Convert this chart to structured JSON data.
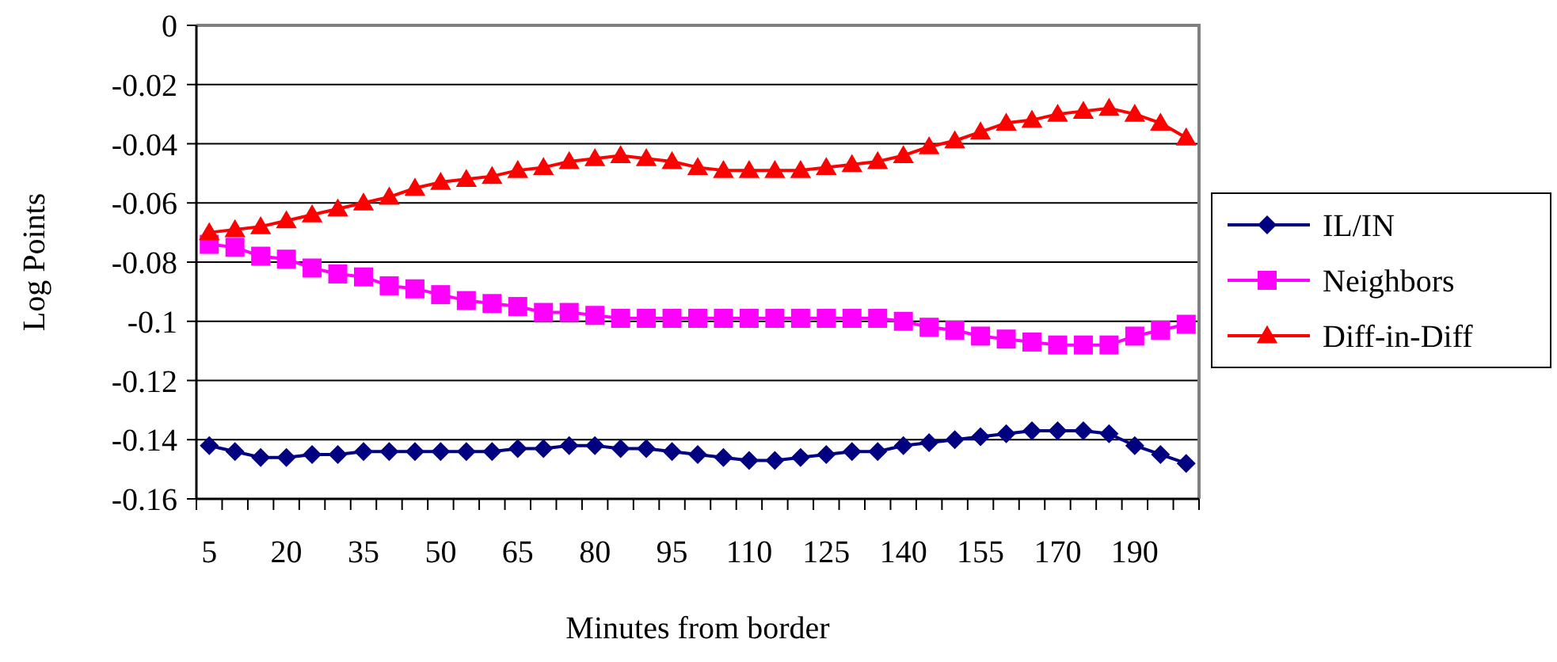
{
  "chart_data": {
    "type": "line",
    "xlabel": "Minutes from border",
    "ylabel": "Log Points",
    "categories": [
      "5",
      null,
      null,
      "20",
      null,
      null,
      "35",
      null,
      null,
      "50",
      null,
      null,
      "65",
      null,
      null,
      "80",
      null,
      null,
      "95",
      null,
      null,
      "110",
      null,
      null,
      "125",
      null,
      null,
      "140",
      null,
      null,
      "155",
      null,
      null,
      "170",
      null,
      null,
      "190",
      null,
      null
    ],
    "ylim": [
      -0.16,
      0
    ],
    "yticks": [
      -0.16,
      -0.14,
      -0.12,
      -0.1,
      -0.08,
      -0.06,
      -0.04,
      -0.02,
      0
    ],
    "grid": "y",
    "legend": "right",
    "series": [
      {
        "name": "IL/IN",
        "color": "#000080",
        "marker": "diamond",
        "values": [
          -0.142,
          -0.144,
          -0.146,
          -0.146,
          -0.145,
          -0.145,
          -0.144,
          -0.144,
          -0.144,
          -0.144,
          -0.144,
          -0.144,
          -0.143,
          -0.143,
          -0.142,
          -0.142,
          -0.143,
          -0.143,
          -0.144,
          -0.145,
          -0.146,
          -0.147,
          -0.147,
          -0.146,
          -0.145,
          -0.144,
          -0.144,
          -0.142,
          -0.141,
          -0.14,
          -0.139,
          -0.138,
          -0.137,
          -0.137,
          -0.137,
          -0.138,
          -0.142,
          -0.145,
          -0.148
        ]
      },
      {
        "name": "Neighbors",
        "color": "#ff00ff",
        "marker": "square",
        "values": [
          -0.074,
          -0.075,
          -0.078,
          -0.079,
          -0.082,
          -0.084,
          -0.085,
          -0.088,
          -0.089,
          -0.091,
          -0.093,
          -0.094,
          -0.095,
          -0.097,
          -0.097,
          -0.098,
          -0.099,
          -0.099,
          -0.099,
          -0.099,
          -0.099,
          -0.099,
          -0.099,
          -0.099,
          -0.099,
          -0.099,
          -0.099,
          -0.1,
          -0.102,
          -0.103,
          -0.105,
          -0.106,
          -0.107,
          -0.108,
          -0.108,
          -0.108,
          -0.105,
          -0.103,
          -0.101
        ]
      },
      {
        "name": "Diff-in-Diff",
        "color": "#ff0000",
        "marker": "triangle",
        "values": [
          -0.07,
          -0.069,
          -0.068,
          -0.066,
          -0.064,
          -0.062,
          -0.06,
          -0.058,
          -0.055,
          -0.053,
          -0.052,
          -0.051,
          -0.049,
          -0.048,
          -0.046,
          -0.045,
          -0.044,
          -0.045,
          -0.046,
          -0.048,
          -0.049,
          -0.049,
          -0.049,
          -0.049,
          -0.048,
          -0.047,
          -0.046,
          -0.044,
          -0.041,
          -0.039,
          -0.036,
          -0.033,
          -0.032,
          -0.03,
          -0.029,
          -0.028,
          -0.03,
          -0.033,
          -0.038
        ]
      }
    ]
  }
}
